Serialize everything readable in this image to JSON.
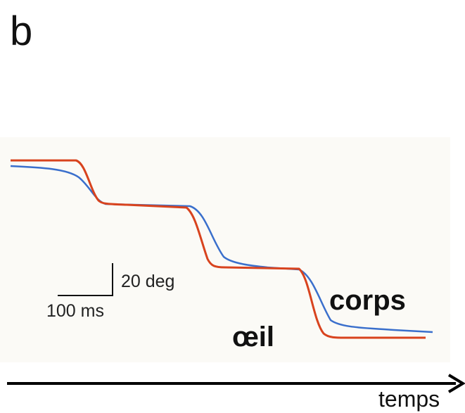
{
  "panel_label": "b",
  "scale_bar": {
    "vertical_label": "20 deg",
    "horizontal_label": "100 ms"
  },
  "traces": {
    "body_label": "corps",
    "eye_label": "œil"
  },
  "axis": {
    "label": "temps"
  }
}
